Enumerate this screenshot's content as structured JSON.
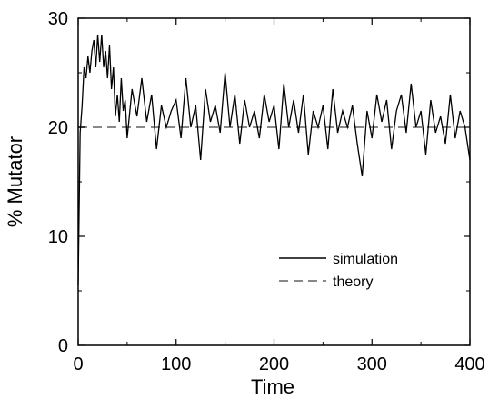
{
  "chart_data": {
    "type": "line",
    "title": "",
    "xlabel": "Time",
    "ylabel": "% Mutator",
    "xlim": [
      0,
      400
    ],
    "ylim": [
      0,
      30
    ],
    "xticks": [
      0,
      100,
      200,
      300,
      400
    ],
    "yticks": [
      0,
      10,
      20,
      30
    ],
    "grid": false,
    "legend_position": "lower-right",
    "series": [
      {
        "name": "simulation",
        "style": "solid",
        "color": "#000000",
        "x": [
          0,
          2,
          4,
          6,
          8,
          10,
          12,
          14,
          16,
          18,
          20,
          22,
          24,
          26,
          28,
          30,
          32,
          34,
          36,
          38,
          40,
          42,
          44,
          46,
          48,
          50,
          55,
          60,
          65,
          70,
          75,
          80,
          85,
          90,
          95,
          100,
          105,
          110,
          115,
          120,
          125,
          130,
          135,
          140,
          145,
          150,
          155,
          160,
          165,
          170,
          175,
          180,
          185,
          190,
          195,
          200,
          205,
          210,
          215,
          220,
          225,
          230,
          235,
          240,
          245,
          250,
          255,
          260,
          265,
          270,
          275,
          280,
          285,
          290,
          295,
          300,
          305,
          310,
          315,
          320,
          325,
          330,
          335,
          340,
          345,
          350,
          355,
          360,
          365,
          370,
          375,
          380,
          385,
          390,
          395,
          400
        ],
        "values": [
          5.5,
          19.5,
          22,
          25.5,
          24.5,
          26.5,
          25,
          27,
          28,
          25.5,
          28.5,
          26,
          28.5,
          25.5,
          27,
          24.5,
          27.5,
          23.5,
          25.5,
          21,
          23,
          20.5,
          24.5,
          21.5,
          22.5,
          19,
          23.5,
          21,
          24.5,
          20.5,
          23,
          18,
          22,
          20,
          21.5,
          22.5,
          19,
          24.5,
          20,
          22,
          17,
          23.5,
          20.5,
          22,
          19.5,
          25,
          20,
          23,
          18.5,
          22.5,
          20,
          21.5,
          19,
          23,
          20.5,
          22,
          18,
          24,
          20,
          22.5,
          19.5,
          23,
          17.5,
          21.5,
          20,
          22,
          18,
          23.5,
          19.5,
          21.5,
          20,
          22,
          18.5,
          15.5,
          21.5,
          19,
          23,
          20.5,
          22.5,
          18,
          21.5,
          23,
          19.5,
          24,
          20,
          21.5,
          17.5,
          22.5,
          19.5,
          21,
          18.5,
          23,
          19,
          21.5,
          20,
          17
        ]
      },
      {
        "name": "theory",
        "style": "dashed",
        "color": "#888888",
        "x": [
          0,
          400
        ],
        "values": [
          20,
          20
        ]
      }
    ]
  }
}
